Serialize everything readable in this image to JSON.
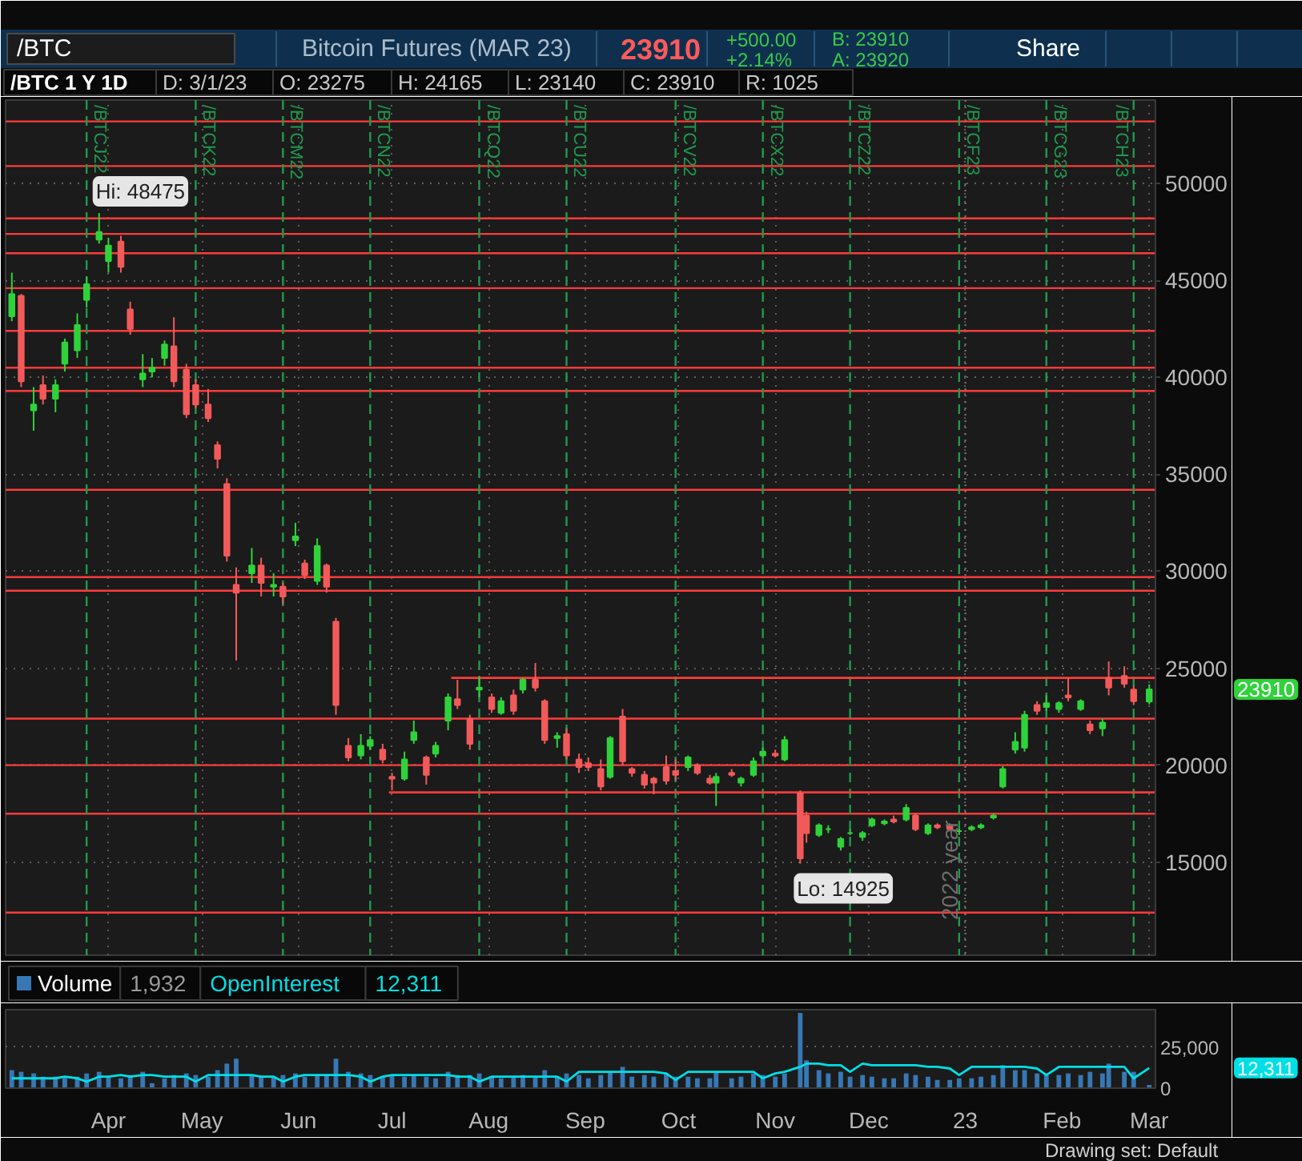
{
  "chart_data": [
    {
      "type": "candlestick",
      "title": "Bitcoin Futures (MAR 23)",
      "subtitle": "/BTC 1 Y 1D",
      "annotations": [
        "/BTC",
        "23910",
        "+500.00",
        "+2.14%",
        "B: 23910",
        "A: 23920",
        "Share",
        "D: 3/1/23",
        "O: 23275",
        "H: 24165",
        "L: 23140",
        "C: 23910",
        "R: 1025",
        "23910",
        {
          "text": "Hi: 48475",
          "x": "2022-03-29",
          "y": 48475
        },
        {
          "text": "Lo: 14925",
          "x": "2022-11-09",
          "y": 14925
        }
      ],
      "x": [
        "2022-03-01",
        "2022-03-04",
        "2022-03-08",
        "2022-03-11",
        "2022-03-15",
        "2022-03-18",
        "2022-03-22",
        "2022-03-25",
        "2022-03-29",
        "2022-04-01",
        "2022-04-05",
        "2022-04-08",
        "2022-04-12",
        "2022-04-15",
        "2022-04-19",
        "2022-04-22",
        "2022-04-26",
        "2022-04-29",
        "2022-05-03",
        "2022-05-06",
        "2022-05-09",
        "2022-05-12",
        "2022-05-17",
        "2022-05-20",
        "2022-05-24",
        "2022-05-27",
        "2022-05-31",
        "2022-06-03",
        "2022-06-07",
        "2022-06-10",
        "2022-06-13",
        "2022-06-17",
        "2022-06-21",
        "2022-06-24",
        "2022-06-28",
        "2022-07-01",
        "2022-07-05",
        "2022-07-08",
        "2022-07-12",
        "2022-07-15",
        "2022-07-19",
        "2022-07-22",
        "2022-07-26",
        "2022-07-29",
        "2022-08-02",
        "2022-08-05",
        "2022-08-09",
        "2022-08-12",
        "2022-08-16",
        "2022-08-19",
        "2022-08-23",
        "2022-08-26",
        "2022-08-30",
        "2022-09-02",
        "2022-09-06",
        "2022-09-09",
        "2022-09-13",
        "2022-09-16",
        "2022-09-20",
        "2022-09-23",
        "2022-09-27",
        "2022-09-30",
        "2022-10-04",
        "2022-10-07",
        "2022-10-11",
        "2022-10-13",
        "2022-10-18",
        "2022-10-21",
        "2022-10-25",
        "2022-10-28",
        "2022-11-01",
        "2022-11-04",
        "2022-11-09",
        "2022-11-11",
        "2022-11-15",
        "2022-11-18",
        "2022-11-22",
        "2022-11-25",
        "2022-11-29",
        "2022-12-02",
        "2022-12-06",
        "2022-12-09",
        "2022-12-13",
        "2022-12-16",
        "2022-12-20",
        "2022-12-23",
        "2022-12-27",
        "2022-12-30",
        "2023-01-03",
        "2023-01-06",
        "2023-01-10",
        "2023-01-13",
        "2023-01-17",
        "2023-01-20",
        "2023-01-24",
        "2023-01-27",
        "2023-01-31",
        "2023-02-03",
        "2023-02-07",
        "2023-02-10",
        "2023-02-14",
        "2023-02-16",
        "2023-02-21",
        "2023-02-24",
        "2023-03-01"
      ],
      "ohlc": [
        [
          43150,
          45400,
          42900,
          44300
        ],
        [
          44200,
          44300,
          39500,
          39800
        ],
        [
          38300,
          39500,
          37250,
          38600
        ],
        [
          39600,
          40100,
          38600,
          38900
        ],
        [
          38900,
          39900,
          38200,
          39600
        ],
        [
          40700,
          42000,
          40300,
          41800
        ],
        [
          41400,
          43300,
          41000,
          42700
        ],
        [
          44000,
          45200,
          43600,
          44800
        ],
        [
          47100,
          48475,
          46900,
          47500
        ],
        [
          46000,
          47200,
          45400,
          46800
        ],
        [
          47000,
          47300,
          45400,
          45700
        ],
        [
          43500,
          43900,
          42200,
          42500
        ],
        [
          39900,
          41200,
          39500,
          40200
        ],
        [
          40300,
          41000,
          40000,
          40500
        ],
        [
          41000,
          41900,
          40600,
          41700
        ],
        [
          41600,
          43100,
          39500,
          39800
        ],
        [
          40400,
          40700,
          37900,
          38100
        ],
        [
          39600,
          39900,
          38400,
          38600
        ],
        [
          38600,
          39400,
          37700,
          37900
        ],
        [
          36500,
          36700,
          35300,
          35800
        ],
        [
          34500,
          34800,
          30500,
          30800
        ],
        [
          29300,
          30200,
          25400,
          28900
        ],
        [
          29900,
          31200,
          29400,
          30300
        ],
        [
          30300,
          30700,
          28700,
          29400
        ],
        [
          29200,
          29900,
          28700,
          29300
        ],
        [
          29200,
          29400,
          28300,
          28700
        ],
        [
          31600,
          32500,
          31300,
          31800
        ],
        [
          30400,
          30600,
          29600,
          29800
        ],
        [
          29500,
          31700,
          29300,
          31300
        ],
        [
          30300,
          30400,
          28900,
          29200
        ],
        [
          27400,
          27600,
          22600,
          23100
        ],
        [
          21000,
          21400,
          20200,
          20400
        ],
        [
          20500,
          21600,
          20300,
          21000
        ],
        [
          21000,
          21500,
          20800,
          21300
        ],
        [
          20800,
          21100,
          20100,
          20300
        ],
        [
          19400,
          19600,
          18700,
          19300
        ],
        [
          19300,
          20700,
          19200,
          20300
        ],
        [
          21300,
          22300,
          21100,
          21700
        ],
        [
          20400,
          20500,
          19000,
          19500
        ],
        [
          20600,
          21200,
          20400,
          21000
        ],
        [
          22300,
          23700,
          21800,
          23500
        ],
        [
          23400,
          24400,
          22900,
          23100
        ],
        [
          22400,
          22600,
          20800,
          21100
        ],
        [
          23900,
          24600,
          23500,
          24000
        ],
        [
          23500,
          23700,
          22700,
          22900
        ],
        [
          22700,
          23500,
          22600,
          23300
        ],
        [
          23600,
          23900,
          22600,
          22800
        ],
        [
          23900,
          24500,
          23700,
          24400
        ],
        [
          24400,
          25270,
          23800,
          24000
        ],
        [
          23300,
          23400,
          21100,
          21300
        ],
        [
          21400,
          21700,
          20900,
          21500
        ],
        [
          21600,
          21900,
          20300,
          20500
        ],
        [
          20300,
          20600,
          19600,
          19900
        ],
        [
          20100,
          20400,
          19700,
          19900
        ],
        [
          19800,
          20300,
          18700,
          18900
        ],
        [
          19400,
          21500,
          19300,
          21400
        ],
        [
          22500,
          22900,
          20000,
          20200
        ],
        [
          19800,
          19900,
          19400,
          19600
        ],
        [
          19500,
          19700,
          18800,
          19000
        ],
        [
          19300,
          19400,
          18500,
          19100
        ],
        [
          19900,
          20500,
          19000,
          19200
        ],
        [
          19700,
          20300,
          19200,
          19500
        ],
        [
          19900,
          20500,
          19700,
          20400
        ],
        [
          20000,
          20100,
          19500,
          19600
        ],
        [
          19300,
          19500,
          19000,
          19100
        ],
        [
          19100,
          19600,
          17900,
          19400
        ],
        [
          19600,
          19800,
          19400,
          19500
        ],
        [
          19100,
          19400,
          18900,
          19300
        ],
        [
          19500,
          20400,
          19400,
          20200
        ],
        [
          20500,
          20900,
          20400,
          20700
        ],
        [
          20600,
          20800,
          20400,
          20500
        ],
        [
          20300,
          21500,
          20200,
          21300
        ],
        [
          18550,
          18700,
          14925,
          15200
        ],
        [
          17400,
          17600,
          16000,
          16500
        ],
        [
          16400,
          17000,
          16300,
          16900
        ],
        [
          16700,
          16900,
          16500,
          16700
        ],
        [
          15800,
          16300,
          15600,
          16200
        ],
        [
          16500,
          16700,
          16400,
          16500
        ],
        [
          16300,
          16600,
          16100,
          16500
        ],
        [
          16900,
          17300,
          16800,
          17200
        ],
        [
          17000,
          17200,
          16900,
          17100
        ],
        [
          17200,
          17400,
          17000,
          17100
        ],
        [
          17200,
          18000,
          17100,
          17800
        ],
        [
          17400,
          17500,
          16600,
          16700
        ],
        [
          16500,
          17000,
          16400,
          16900
        ],
        [
          16900,
          17000,
          16700,
          16800
        ],
        [
          16900,
          17000,
          16600,
          16700
        ],
        [
          16600,
          16700,
          16400,
          16600
        ],
        [
          16700,
          16900,
          16600,
          16800
        ],
        [
          16800,
          17000,
          16700,
          16900
        ],
        [
          17300,
          17500,
          17200,
          17400
        ],
        [
          18900,
          19950,
          18800,
          19800
        ],
        [
          20800,
          21700,
          20600,
          21200
        ],
        [
          20900,
          22800,
          20700,
          22600
        ],
        [
          23100,
          23300,
          22600,
          22800
        ],
        [
          23000,
          23600,
          22800,
          23200
        ],
        [
          22900,
          23300,
          22700,
          23200
        ],
        [
          23600,
          24500,
          23300,
          23500
        ],
        [
          22900,
          23400,
          22800,
          23300
        ],
        [
          22100,
          22300,
          21600,
          21800
        ],
        [
          21900,
          22400,
          21500,
          22200
        ],
        [
          24500,
          25350,
          23600,
          24000
        ],
        [
          24600,
          25100,
          24000,
          24200
        ],
        [
          23900,
          24100,
          23100,
          23300
        ],
        [
          23275,
          24165,
          23140,
          23910
        ]
      ],
      "series": [
        {
          "type": "line",
          "color": "#ff3b3b",
          "x": [
            "2022-07-20",
            "2023-03-03"
          ],
          "values": [
            24500,
            24500
          ]
        },
        {
          "type": "line",
          "color": "#ff3b3b",
          "x": [
            "2022-06-30",
            "2023-03-03"
          ],
          "values": [
            18600,
            18600
          ]
        }
      ],
      "xlim": [
        "2022-02-27",
        "2023-03-03"
      ],
      "ylim": [
        10200,
        54300
      ],
      "xticks": [
        {
          "value": "2022-04-01",
          "label": null
        },
        {
          "value": "2022-05-01",
          "label": null
        },
        {
          "value": "2022-06-01",
          "label": null
        },
        {
          "value": "2022-07-01",
          "label": null
        },
        {
          "value": "2022-08-01",
          "label": null
        },
        {
          "value": "2022-09-01",
          "label": null
        },
        {
          "value": "2022-10-01",
          "label": null
        },
        {
          "value": "2022-11-01",
          "label": null
        },
        {
          "value": "2022-12-01",
          "label": null
        },
        {
          "value": "2023-01-01",
          "label": null
        },
        {
          "value": "2023-02-01",
          "label": null
        },
        {
          "value": "2023-03-01",
          "label": null
        }
      ],
      "yticks": [
        15000,
        20000,
        25000,
        30000,
        35000,
        40000,
        45000,
        50000
      ],
      "tick_labels": "y",
      "grid": true,
      "ref_lines": [
        {
          "axis": "y",
          "value": 53200,
          "color": "#ff3b3b"
        },
        {
          "axis": "y",
          "value": 50900,
          "color": "#ff3b3b"
        },
        {
          "axis": "y",
          "value": 48200,
          "color": "#ff3b3b"
        },
        {
          "axis": "y",
          "value": 47400,
          "color": "#ff3b3b"
        },
        {
          "axis": "y",
          "value": 46400,
          "color": "#ff3b3b"
        },
        {
          "axis": "y",
          "value": 44600,
          "color": "#ff3b3b"
        },
        {
          "axis": "y",
          "value": 42400,
          "color": "#ff3b3b"
        },
        {
          "axis": "y",
          "value": 40500,
          "color": "#ff3b3b"
        },
        {
          "axis": "y",
          "value": 39300,
          "color": "#ff3b3b"
        },
        {
          "axis": "y",
          "value": 34200,
          "color": "#ff3b3b"
        },
        {
          "axis": "y",
          "value": 29700,
          "color": "#ff3b3b"
        },
        {
          "axis": "y",
          "value": 29000,
          "color": "#ff3b3b"
        },
        {
          "axis": "y",
          "value": 22400,
          "color": "#ff3b3b"
        },
        {
          "axis": "y",
          "value": 20000,
          "color": "#ff3b3b"
        },
        {
          "axis": "y",
          "value": 17500,
          "color": "#ff3b3b"
        },
        {
          "axis": "y",
          "value": 12400,
          "color": "#ff3b3b"
        },
        {
          "axis": "x",
          "value": "2022-03-25",
          "label": "/BTCJ22",
          "color": "#1f9a4e",
          "line_style": "dashed"
        },
        {
          "axis": "x",
          "value": "2022-04-29",
          "label": "/BTCK22",
          "color": "#1f9a4e",
          "line_style": "dashed"
        },
        {
          "axis": "x",
          "value": "2022-05-27",
          "label": "/BTCM22",
          "color": "#1f9a4e",
          "line_style": "dashed"
        },
        {
          "axis": "x",
          "value": "2022-06-24",
          "label": "/BTCN22",
          "color": "#1f9a4e",
          "line_style": "dashed"
        },
        {
          "axis": "x",
          "value": "2022-07-29",
          "label": "/BTCQ22",
          "color": "#1f9a4e",
          "line_style": "dashed"
        },
        {
          "axis": "x",
          "value": "2022-08-26",
          "label": "/BTCU22",
          "color": "#1f9a4e",
          "line_style": "dashed"
        },
        {
          "axis": "x",
          "value": "2022-09-30",
          "label": "/BTCV22",
          "color": "#1f9a4e",
          "line_style": "dashed"
        },
        {
          "axis": "x",
          "value": "2022-10-28",
          "label": "/BTCX22",
          "color": "#1f9a4e",
          "line_style": "dashed"
        },
        {
          "axis": "x",
          "value": "2022-11-25",
          "label": "/BTCZ22",
          "color": "#1f9a4e",
          "line_style": "dashed"
        },
        {
          "axis": "x",
          "value": "2022-12-30",
          "label": "/BTCF23",
          "color": "#1f9a4e",
          "line_style": "dashed"
        },
        {
          "axis": "x",
          "value": "2023-01-27",
          "label": "/BTCG23",
          "color": "#1f9a4e",
          "line_style": "dashed"
        },
        {
          "axis": "x",
          "value": "2023-02-24",
          "label": "/BTCH23",
          "color": "#1f9a4e",
          "line_style": "dashed"
        },
        {
          "axis": "x",
          "value": "2023-01-01",
          "label": "2022 year",
          "color": "#6e6e6e",
          "line_style": "dotted"
        }
      ]
    },
    {
      "type": "bar",
      "x": [
        "2022-03-01",
        "2022-03-04",
        "2022-03-08",
        "2022-03-11",
        "2022-03-15",
        "2022-03-18",
        "2022-03-22",
        "2022-03-25",
        "2022-03-29",
        "2022-04-01",
        "2022-04-05",
        "2022-04-08",
        "2022-04-12",
        "2022-04-15",
        "2022-04-19",
        "2022-04-22",
        "2022-04-26",
        "2022-04-29",
        "2022-05-03",
        "2022-05-06",
        "2022-05-09",
        "2022-05-12",
        "2022-05-17",
        "2022-05-20",
        "2022-05-24",
        "2022-05-27",
        "2022-05-31",
        "2022-06-03",
        "2022-06-07",
        "2022-06-10",
        "2022-06-13",
        "2022-06-17",
        "2022-06-21",
        "2022-06-24",
        "2022-06-28",
        "2022-07-01",
        "2022-07-05",
        "2022-07-08",
        "2022-07-12",
        "2022-07-15",
        "2022-07-19",
        "2022-07-22",
        "2022-07-26",
        "2022-07-29",
        "2022-08-02",
        "2022-08-05",
        "2022-08-09",
        "2022-08-12",
        "2022-08-16",
        "2022-08-19",
        "2022-08-23",
        "2022-08-26",
        "2022-08-30",
        "2022-09-02",
        "2022-09-06",
        "2022-09-09",
        "2022-09-13",
        "2022-09-16",
        "2022-09-20",
        "2022-09-23",
        "2022-09-27",
        "2022-09-30",
        "2022-10-04",
        "2022-10-07",
        "2022-10-11",
        "2022-10-13",
        "2022-10-18",
        "2022-10-21",
        "2022-10-25",
        "2022-10-28",
        "2022-11-01",
        "2022-11-04",
        "2022-11-09",
        "2022-11-11",
        "2022-11-15",
        "2022-11-18",
        "2022-11-22",
        "2022-11-25",
        "2022-11-29",
        "2022-12-02",
        "2022-12-06",
        "2022-12-09",
        "2022-12-13",
        "2022-12-16",
        "2022-12-20",
        "2022-12-23",
        "2022-12-27",
        "2022-12-30",
        "2023-01-03",
        "2023-01-06",
        "2023-01-10",
        "2023-01-13",
        "2023-01-17",
        "2023-01-20",
        "2023-01-24",
        "2023-01-27",
        "2023-01-31",
        "2023-02-03",
        "2023-02-07",
        "2023-02-10",
        "2023-02-14",
        "2023-02-16",
        "2023-02-21",
        "2023-02-24",
        "2023-03-01"
      ],
      "series": [
        {
          "name": "Volume",
          "color": "#3778b4",
          "values": [
            11000,
            10000,
            9000,
            7000,
            7000,
            7000,
            7000,
            9000,
            10000,
            7000,
            6000,
            8000,
            10000,
            3000,
            6000,
            8000,
            9000,
            8000,
            7000,
            11000,
            15000,
            18000,
            8000,
            7000,
            7000,
            8000,
            9000,
            7000,
            8000,
            8000,
            18000,
            10000,
            9000,
            8000,
            7000,
            8000,
            7000,
            8000,
            7000,
            6000,
            10000,
            8000,
            8000,
            9000,
            7000,
            6000,
            7000,
            8000,
            7000,
            11000,
            7000,
            9000,
            8000,
            6000,
            8000,
            10000,
            13000,
            7000,
            8000,
            7000,
            9000,
            7000,
            7000,
            6000,
            6000,
            10000,
            6000,
            7000,
            9000,
            8000,
            7000,
            9000,
            46000,
            17000,
            11000,
            9000,
            10000,
            7000,
            8000,
            7000,
            6000,
            6000,
            9000,
            8000,
            7000,
            5000,
            5000,
            6000,
            6000,
            7000,
            8000,
            14000,
            11000,
            11000,
            9000,
            9000,
            8000,
            9000,
            8000,
            10000,
            9000,
            15000,
            10000,
            10000,
            1932
          ]
        },
        {
          "name": "OpenInterest",
          "type": "line",
          "color": "#00dfe6",
          "values": [
            6000,
            6000,
            6000,
            6000,
            6000,
            7000,
            6000,
            4000,
            7000,
            7000,
            8000,
            7000,
            8000,
            8000,
            7000,
            7000,
            7000,
            4000,
            8000,
            8000,
            8000,
            8000,
            8000,
            7000,
            7000,
            4000,
            7000,
            8000,
            8000,
            8000,
            8000,
            8000,
            7000,
            4000,
            7000,
            8000,
            8000,
            8000,
            8000,
            8000,
            8000,
            7000,
            7000,
            4000,
            7000,
            7000,
            7000,
            7000,
            7000,
            7000,
            7000,
            4000,
            10000,
            10000,
            10000,
            10000,
            10000,
            10000,
            10000,
            10000,
            9000,
            5000,
            10000,
            10000,
            10000,
            10000,
            10000,
            10000,
            10000,
            6000,
            9000,
            10000,
            13000,
            15000,
            15000,
            14000,
            14000,
            10000,
            15000,
            14000,
            14000,
            14000,
            14000,
            14000,
            13000,
            13000,
            12000,
            8000,
            13000,
            13000,
            13000,
            13000,
            13000,
            13000,
            12000,
            8000,
            13000,
            13000,
            13000,
            13000,
            13000,
            13000,
            13000,
            6000,
            12311
          ]
        }
      ],
      "xlim": [
        "2022-02-27",
        "2023-03-03"
      ],
      "ylim": [
        0,
        48000
      ],
      "xticks": [
        {
          "value": "2022-04-01",
          "label": "Apr"
        },
        {
          "value": "2022-05-01",
          "label": "May"
        },
        {
          "value": "2022-06-01",
          "label": "Jun"
        },
        {
          "value": "2022-07-01",
          "label": "Jul"
        },
        {
          "value": "2022-08-01",
          "label": "Aug"
        },
        {
          "value": "2022-09-01",
          "label": "Sep"
        },
        {
          "value": "2022-10-01",
          "label": "Oct"
        },
        {
          "value": "2022-11-01",
          "label": "Nov"
        },
        {
          "value": "2022-12-01",
          "label": "Dec"
        },
        {
          "value": "2023-01-01",
          "label": "23"
        },
        {
          "value": "2023-02-01",
          "label": "Feb"
        },
        {
          "value": "2023-03-01",
          "label": "Mar"
        }
      ],
      "yticks": [
        0,
        {
          "value": 25000,
          "label": "25,000"
        }
      ],
      "grid": "y",
      "legend": "top left",
      "annotations": [
        "1,932",
        "12,311",
        "12,311",
        "Drawing set: Default"
      ]
    }
  ]
}
